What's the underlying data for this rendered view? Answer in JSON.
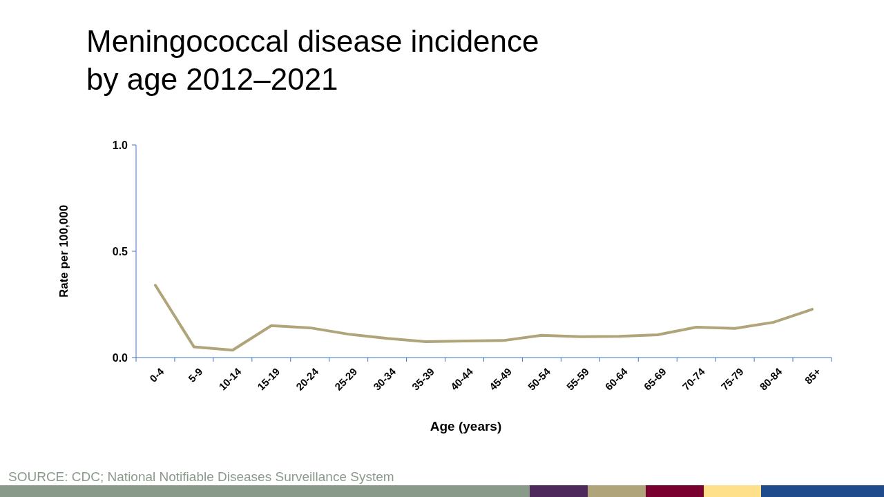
{
  "chart_data": {
    "type": "line",
    "title": "Meningococcal disease incidence\nby age 2012–2021",
    "xlabel": "Age (years)",
    "ylabel": "Rate per 100,000",
    "categories": [
      "0-4",
      "5-9",
      "10-14",
      "15-19",
      "20-24",
      "25-29",
      "30-34",
      "35-39",
      "40-44",
      "45-49",
      "50-54",
      "55-59",
      "60-64",
      "65-69",
      "70-74",
      "75-79",
      "80-84",
      "85+"
    ],
    "series": [
      {
        "color": "#b0a57a",
        "values": [
          0.34,
          0.05,
          0.035,
          0.15,
          0.14,
          0.11,
          0.09,
          0.075,
          0.078,
          0.08,
          0.105,
          0.098,
          0.1,
          0.107,
          0.143,
          0.137,
          0.166,
          0.227
        ]
      }
    ],
    "ylim": [
      0,
      1
    ],
    "yticks": [
      {
        "value": 0,
        "label": "0.0"
      },
      {
        "value": 0.5,
        "label": "0.5"
      },
      {
        "value": 1,
        "label": "1.0"
      }
    ],
    "grid": false,
    "marker": "none",
    "line_style": "solid",
    "annotations": [
      "SOURCE: CDC; National Notifiable Diseases Surveillance System"
    ]
  }
}
